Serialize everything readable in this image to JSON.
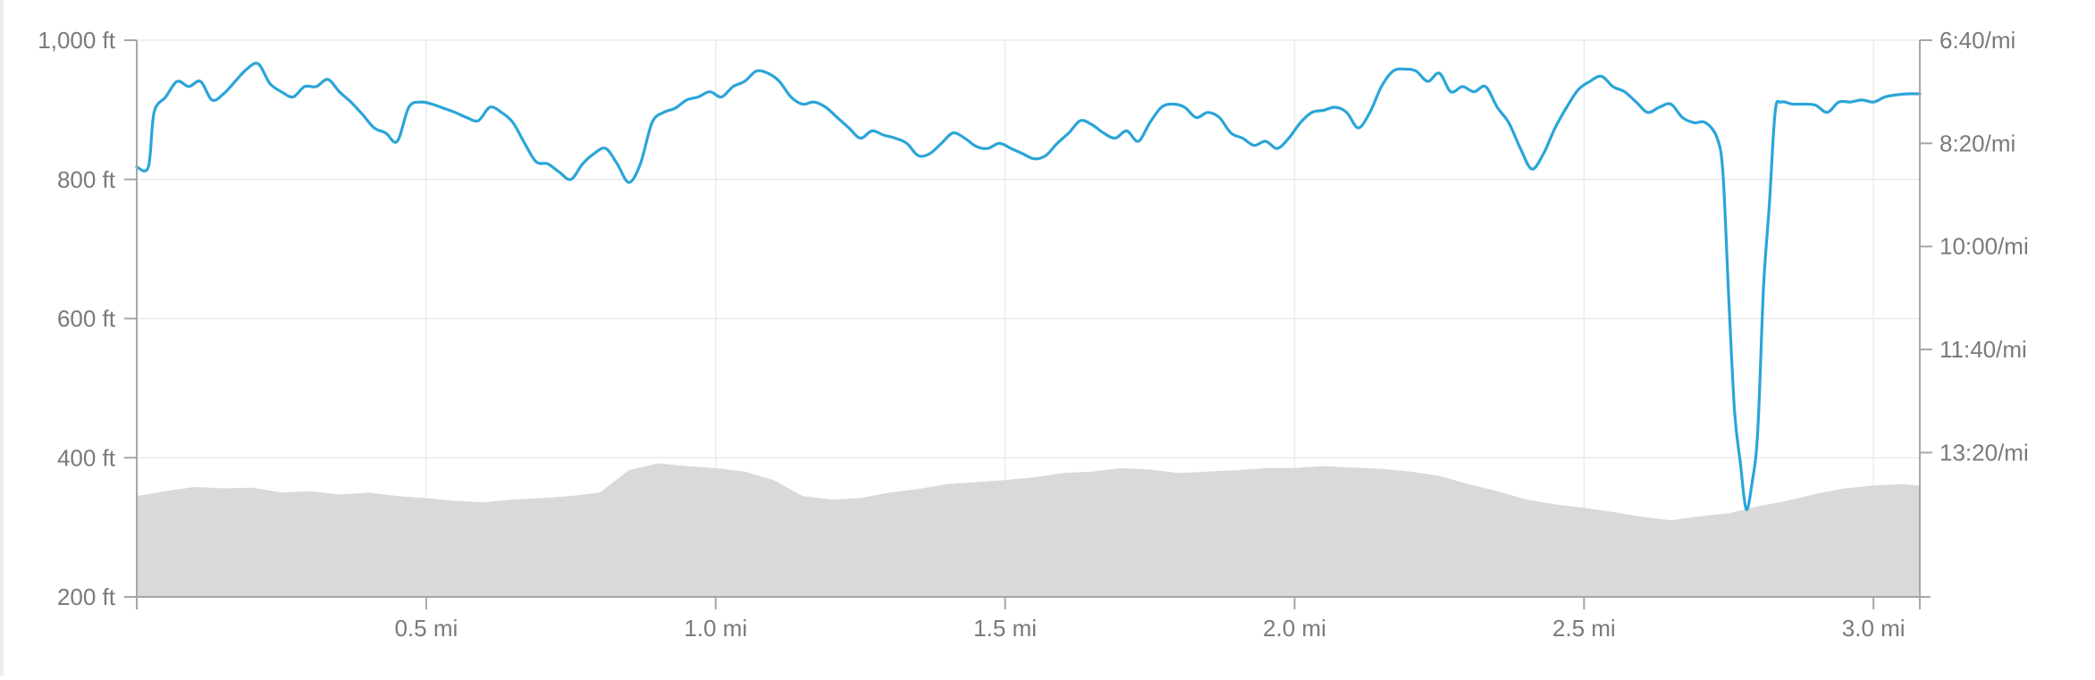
{
  "chart_data": {
    "type": "area",
    "title": "",
    "x_unit": "mi",
    "xlim": [
      0,
      3.08
    ],
    "x_ticks": [
      {
        "value": 0.5,
        "label": "0.5 mi"
      },
      {
        "value": 1.0,
        "label": "1.0 mi"
      },
      {
        "value": 1.5,
        "label": "1.5 mi"
      },
      {
        "value": 2.0,
        "label": "2.0 mi"
      },
      {
        "value": 2.5,
        "label": "2.5 mi"
      },
      {
        "value": 3.0,
        "label": "3.0 mi"
      }
    ],
    "y_left": {
      "unit": "ft",
      "lim": [
        200,
        1000
      ],
      "ticks": [
        {
          "value": 1000,
          "label": "1,000 ft"
        },
        {
          "value": 800,
          "label": "800 ft"
        },
        {
          "value": 600,
          "label": "600 ft"
        },
        {
          "value": 400,
          "label": "400 ft"
        },
        {
          "value": 200,
          "label": "200 ft"
        }
      ]
    },
    "y_right": {
      "unit": "min/mi",
      "lim_seconds_per_mi": [
        400,
        940
      ],
      "ticks": [
        {
          "value": 400,
          "label": "6:40/mi"
        },
        {
          "value": 500,
          "label": "8:20/mi"
        },
        {
          "value": 600,
          "label": "10:00/mi"
        },
        {
          "value": 700,
          "label": "11:40/mi"
        },
        {
          "value": 800,
          "label": "13:20/mi"
        }
      ]
    },
    "grid": true,
    "series": [
      {
        "kind": "elevation-area",
        "axis": "left",
        "color": "#d9d9d9",
        "points": [
          [
            0.0,
            345
          ],
          [
            0.05,
            352
          ],
          [
            0.1,
            358
          ],
          [
            0.15,
            356
          ],
          [
            0.2,
            357
          ],
          [
            0.25,
            350
          ],
          [
            0.3,
            352
          ],
          [
            0.35,
            347
          ],
          [
            0.4,
            350
          ],
          [
            0.45,
            345
          ],
          [
            0.5,
            342
          ],
          [
            0.55,
            338
          ],
          [
            0.6,
            336
          ],
          [
            0.65,
            340
          ],
          [
            0.7,
            342
          ],
          [
            0.75,
            345
          ],
          [
            0.8,
            350
          ],
          [
            0.85,
            382
          ],
          [
            0.9,
            392
          ],
          [
            0.95,
            388
          ],
          [
            1.0,
            385
          ],
          [
            1.05,
            380
          ],
          [
            1.1,
            368
          ],
          [
            1.15,
            345
          ],
          [
            1.2,
            340
          ],
          [
            1.25,
            342
          ],
          [
            1.3,
            350
          ],
          [
            1.35,
            355
          ],
          [
            1.4,
            362
          ],
          [
            1.45,
            365
          ],
          [
            1.5,
            368
          ],
          [
            1.55,
            372
          ],
          [
            1.6,
            378
          ],
          [
            1.65,
            380
          ],
          [
            1.7,
            385
          ],
          [
            1.75,
            383
          ],
          [
            1.8,
            378
          ],
          [
            1.85,
            380
          ],
          [
            1.9,
            382
          ],
          [
            1.95,
            385
          ],
          [
            2.0,
            385
          ],
          [
            2.05,
            388
          ],
          [
            2.1,
            386
          ],
          [
            2.15,
            384
          ],
          [
            2.2,
            380
          ],
          [
            2.25,
            374
          ],
          [
            2.3,
            362
          ],
          [
            2.35,
            352
          ],
          [
            2.4,
            340
          ],
          [
            2.45,
            333
          ],
          [
            2.5,
            328
          ],
          [
            2.55,
            322
          ],
          [
            2.6,
            315
          ],
          [
            2.65,
            310
          ],
          [
            2.7,
            316
          ],
          [
            2.75,
            320
          ],
          [
            2.8,
            330
          ],
          [
            2.85,
            338
          ],
          [
            2.9,
            348
          ],
          [
            2.95,
            356
          ],
          [
            3.0,
            360
          ],
          [
            3.05,
            362
          ],
          [
            3.08,
            360
          ]
        ]
      },
      {
        "kind": "pace-line",
        "axis": "right",
        "color": "#2aa5d8",
        "points": [
          [
            0.0,
            523
          ],
          [
            0.02,
            523
          ],
          [
            0.03,
            470
          ],
          [
            0.05,
            455
          ],
          [
            0.07,
            440
          ],
          [
            0.09,
            445
          ],
          [
            0.11,
            440
          ],
          [
            0.13,
            458
          ],
          [
            0.15,
            452
          ],
          [
            0.17,
            440
          ],
          [
            0.19,
            428
          ],
          [
            0.21,
            423
          ],
          [
            0.23,
            442
          ],
          [
            0.25,
            450
          ],
          [
            0.27,
            455
          ],
          [
            0.29,
            445
          ],
          [
            0.31,
            445
          ],
          [
            0.33,
            438
          ],
          [
            0.35,
            450
          ],
          [
            0.37,
            460
          ],
          [
            0.39,
            472
          ],
          [
            0.41,
            485
          ],
          [
            0.43,
            490
          ],
          [
            0.45,
            498
          ],
          [
            0.47,
            465
          ],
          [
            0.49,
            460
          ],
          [
            0.51,
            462
          ],
          [
            0.53,
            466
          ],
          [
            0.55,
            470
          ],
          [
            0.57,
            475
          ],
          [
            0.59,
            478
          ],
          [
            0.61,
            465
          ],
          [
            0.63,
            470
          ],
          [
            0.65,
            480
          ],
          [
            0.67,
            500
          ],
          [
            0.69,
            518
          ],
          [
            0.71,
            520
          ],
          [
            0.73,
            528
          ],
          [
            0.75,
            535
          ],
          [
            0.77,
            520
          ],
          [
            0.79,
            510
          ],
          [
            0.81,
            505
          ],
          [
            0.83,
            520
          ],
          [
            0.85,
            538
          ],
          [
            0.87,
            520
          ],
          [
            0.89,
            480
          ],
          [
            0.91,
            470
          ],
          [
            0.93,
            466
          ],
          [
            0.95,
            458
          ],
          [
            0.97,
            455
          ],
          [
            0.99,
            450
          ],
          [
            1.01,
            455
          ],
          [
            1.03,
            445
          ],
          [
            1.05,
            440
          ],
          [
            1.07,
            430
          ],
          [
            1.09,
            432
          ],
          [
            1.11,
            440
          ],
          [
            1.13,
            455
          ],
          [
            1.15,
            462
          ],
          [
            1.17,
            460
          ],
          [
            1.19,
            465
          ],
          [
            1.21,
            475
          ],
          [
            1.23,
            485
          ],
          [
            1.25,
            495
          ],
          [
            1.27,
            488
          ],
          [
            1.29,
            492
          ],
          [
            1.31,
            495
          ],
          [
            1.33,
            500
          ],
          [
            1.35,
            512
          ],
          [
            1.37,
            510
          ],
          [
            1.39,
            500
          ],
          [
            1.41,
            490
          ],
          [
            1.43,
            495
          ],
          [
            1.45,
            503
          ],
          [
            1.47,
            505
          ],
          [
            1.49,
            500
          ],
          [
            1.51,
            505
          ],
          [
            1.53,
            510
          ],
          [
            1.55,
            515
          ],
          [
            1.57,
            512
          ],
          [
            1.59,
            500
          ],
          [
            1.61,
            490
          ],
          [
            1.63,
            478
          ],
          [
            1.65,
            482
          ],
          [
            1.67,
            490
          ],
          [
            1.69,
            495
          ],
          [
            1.71,
            488
          ],
          [
            1.73,
            498
          ],
          [
            1.75,
            480
          ],
          [
            1.77,
            465
          ],
          [
            1.79,
            462
          ],
          [
            1.81,
            465
          ],
          [
            1.83,
            475
          ],
          [
            1.85,
            470
          ],
          [
            1.87,
            475
          ],
          [
            1.89,
            490
          ],
          [
            1.91,
            495
          ],
          [
            1.93,
            502
          ],
          [
            1.95,
            498
          ],
          [
            1.97,
            505
          ],
          [
            1.99,
            495
          ],
          [
            2.01,
            480
          ],
          [
            2.03,
            470
          ],
          [
            2.05,
            468
          ],
          [
            2.07,
            465
          ],
          [
            2.09,
            470
          ],
          [
            2.11,
            485
          ],
          [
            2.13,
            470
          ],
          [
            2.15,
            445
          ],
          [
            2.17,
            430
          ],
          [
            2.19,
            428
          ],
          [
            2.21,
            430
          ],
          [
            2.23,
            440
          ],
          [
            2.25,
            432
          ],
          [
            2.27,
            450
          ],
          [
            2.29,
            445
          ],
          [
            2.31,
            450
          ],
          [
            2.33,
            445
          ],
          [
            2.35,
            465
          ],
          [
            2.37,
            480
          ],
          [
            2.39,
            505
          ],
          [
            2.41,
            525
          ],
          [
            2.43,
            510
          ],
          [
            2.45,
            485
          ],
          [
            2.47,
            465
          ],
          [
            2.49,
            448
          ],
          [
            2.51,
            440
          ],
          [
            2.53,
            435
          ],
          [
            2.55,
            445
          ],
          [
            2.57,
            450
          ],
          [
            2.59,
            460
          ],
          [
            2.61,
            470
          ],
          [
            2.63,
            465
          ],
          [
            2.65,
            462
          ],
          [
            2.67,
            475
          ],
          [
            2.69,
            480
          ],
          [
            2.71,
            480
          ],
          [
            2.73,
            495
          ],
          [
            2.74,
            530
          ],
          [
            2.75,
            650
          ],
          [
            2.76,
            760
          ],
          [
            2.77,
            810
          ],
          [
            2.78,
            855
          ],
          [
            2.79,
            830
          ],
          [
            2.8,
            780
          ],
          [
            2.81,
            640
          ],
          [
            2.82,
            560
          ],
          [
            2.83,
            470
          ],
          [
            2.84,
            460
          ],
          [
            2.86,
            462
          ],
          [
            2.88,
            462
          ],
          [
            2.9,
            463
          ],
          [
            2.92,
            470
          ],
          [
            2.94,
            460
          ],
          [
            2.96,
            460
          ],
          [
            2.98,
            458
          ],
          [
            3.0,
            460
          ],
          [
            3.02,
            455
          ],
          [
            3.04,
            453
          ],
          [
            3.06,
            452
          ],
          [
            3.08,
            452
          ]
        ]
      }
    ]
  }
}
